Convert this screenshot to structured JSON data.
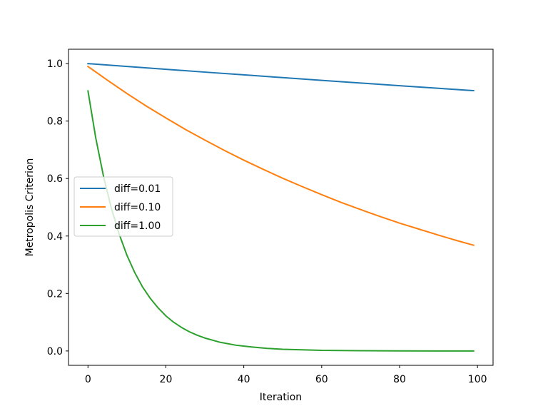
{
  "chart_data": {
    "type": "line",
    "title": "",
    "xlabel": "Iteration",
    "ylabel": "Metropolis Criterion",
    "xlim": [
      -5,
      104
    ],
    "ylim": [
      -0.05,
      1.05
    ],
    "xticks": [
      0,
      20,
      40,
      60,
      80,
      100
    ],
    "xtick_labels": [
      "0",
      "20",
      "40",
      "60",
      "80",
      "100"
    ],
    "yticks": [
      0.0,
      0.2,
      0.4,
      0.6,
      0.8,
      1.0
    ],
    "ytick_labels": [
      "0.0",
      "0.2",
      "0.4",
      "0.6",
      "0.8",
      "1.0"
    ],
    "grid": false,
    "legend_position": "center-left",
    "series": [
      {
        "name": "diff=0.01",
        "color": "#1f77b4",
        "x": [
          0,
          10,
          20,
          30,
          40,
          50,
          60,
          70,
          80,
          90,
          99
        ],
        "y": [
          1.0,
          0.99,
          0.9802,
          0.9704,
          0.9608,
          0.9512,
          0.9418,
          0.9324,
          0.9231,
          0.9139,
          0.9057
        ]
      },
      {
        "name": "diff=0.10",
        "color": "#ff7f0e",
        "x": [
          0,
          5,
          10,
          15,
          20,
          25,
          30,
          35,
          40,
          45,
          50,
          55,
          60,
          65,
          70,
          75,
          80,
          85,
          90,
          95,
          99
        ],
        "y": [
          0.99,
          0.942,
          0.896,
          0.852,
          0.811,
          0.771,
          0.734,
          0.698,
          0.664,
          0.632,
          0.601,
          0.572,
          0.544,
          0.517,
          0.492,
          0.468,
          0.445,
          0.424,
          0.403,
          0.383,
          0.368
        ]
      },
      {
        "name": "diff=1.00",
        "color": "#2ca02c",
        "x": [
          0,
          2,
          4,
          6,
          8,
          10,
          12,
          14,
          16,
          18,
          20,
          22,
          24,
          26,
          28,
          30,
          34,
          38,
          42,
          46,
          50,
          55,
          60,
          70,
          80,
          90,
          99
        ],
        "y": [
          0.905,
          0.741,
          0.607,
          0.497,
          0.407,
          0.333,
          0.273,
          0.223,
          0.183,
          0.15,
          0.122,
          0.1,
          0.082,
          0.067,
          0.055,
          0.045,
          0.03,
          0.02,
          0.014,
          0.009,
          0.006,
          0.004,
          0.002,
          0.001,
          0.0003,
          0.0001,
          0.0
        ]
      }
    ]
  }
}
